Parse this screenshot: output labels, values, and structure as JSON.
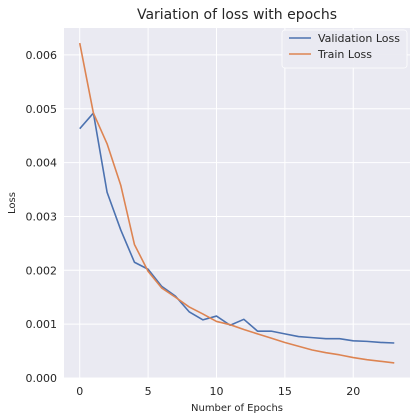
{
  "chart_data": {
    "type": "line",
    "title": "Variation of loss with epochs",
    "xlabel": "Number of Epochs",
    "ylabel": "Loss",
    "xlim": [
      -1.15,
      24.15
    ],
    "ylim": [
      0,
      0.0065
    ],
    "x_ticks": [
      0,
      5,
      10,
      15,
      20
    ],
    "x_tick_labels": [
      "0",
      "5",
      "10",
      "15",
      "20"
    ],
    "y_ticks": [
      0,
      0.001,
      0.002,
      0.003,
      0.004,
      0.005,
      0.006
    ],
    "y_tick_labels": [
      "0.000",
      "0.001",
      "0.002",
      "0.003",
      "0.004",
      "0.005",
      "0.006"
    ],
    "grid": true,
    "legend_position": "top-right",
    "background_color": "#eaeaf2",
    "x": [
      0,
      1,
      2,
      3,
      4,
      5,
      6,
      7,
      8,
      9,
      10,
      11,
      12,
      13,
      14,
      15,
      16,
      17,
      18,
      19,
      20,
      21,
      22,
      23
    ],
    "series": [
      {
        "name": "Validation Loss",
        "color": "#4c72b0",
        "values": [
          0.00463,
          0.00492,
          0.00345,
          0.00275,
          0.00215,
          0.00202,
          0.0017,
          0.00152,
          0.00123,
          0.00108,
          0.00115,
          0.00098,
          0.00109,
          0.00087,
          0.00087,
          0.00082,
          0.00077,
          0.00075,
          0.00073,
          0.00073,
          0.00069,
          0.00068,
          0.00066,
          0.00065
        ]
      },
      {
        "name": "Train Loss",
        "color": "#dd8452",
        "values": [
          0.00622,
          0.00492,
          0.00435,
          0.00358,
          0.00248,
          0.00198,
          0.00167,
          0.0015,
          0.00132,
          0.00119,
          0.00105,
          0.00099,
          0.0009,
          0.00082,
          0.00074,
          0.00066,
          0.00059,
          0.00052,
          0.00047,
          0.00043,
          0.00038,
          0.00034,
          0.00031,
          0.00028
        ]
      }
    ]
  }
}
